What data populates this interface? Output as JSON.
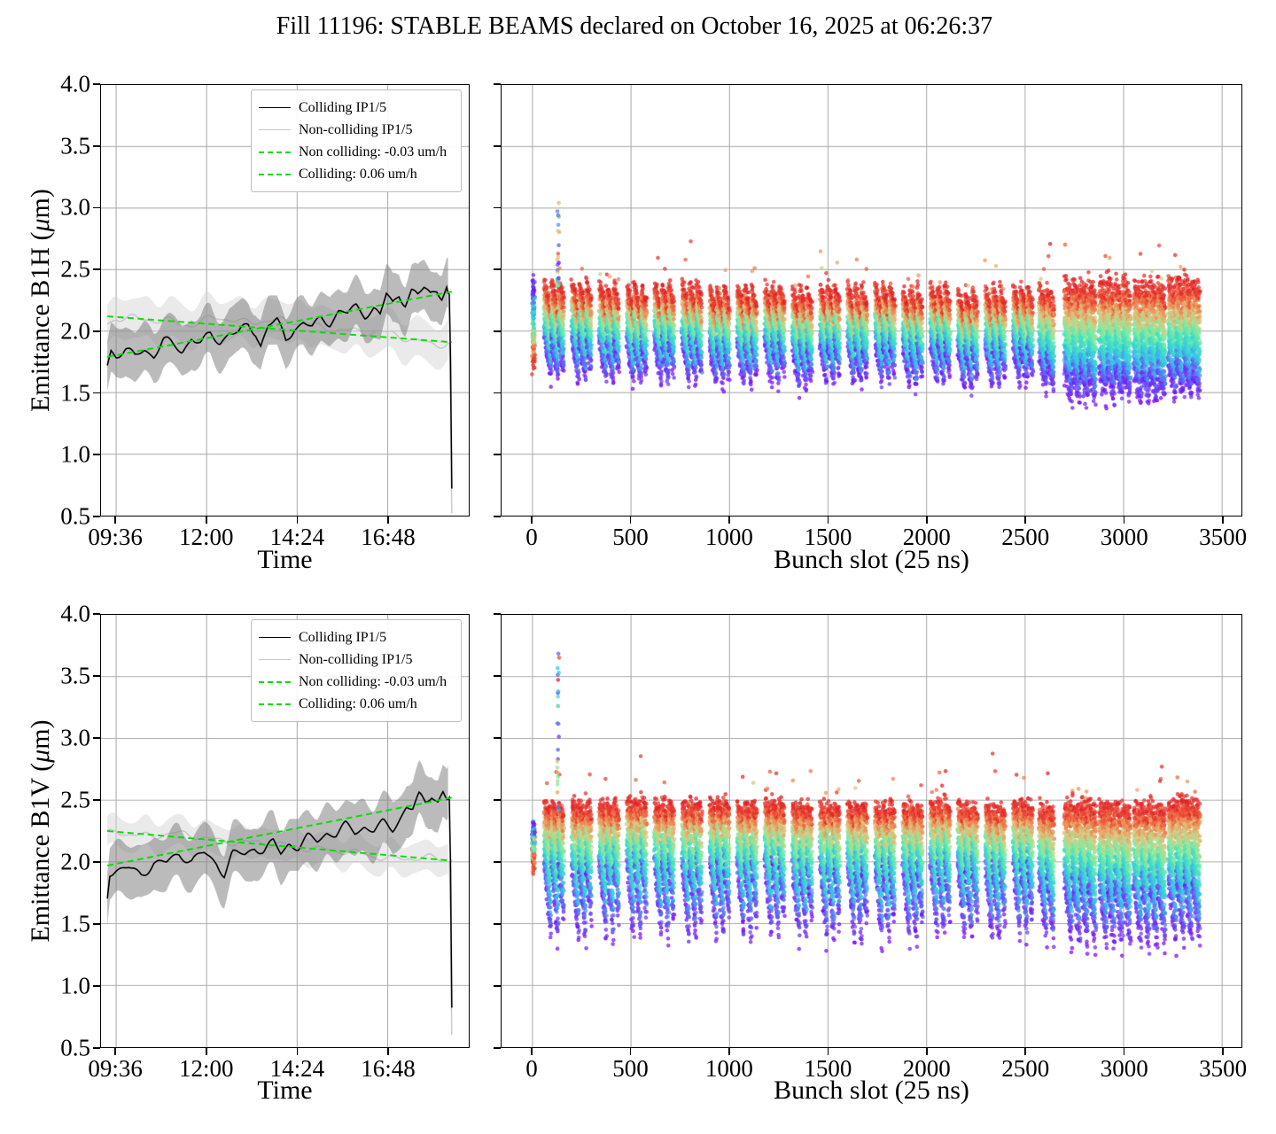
{
  "title": "Fill 11196: STABLE BEAMS declared on October 16, 2025 at 06:26:37",
  "colors": {
    "background": "#ffffff",
    "grid": "#b0b0b0",
    "spine": "#000000",
    "colliding_line": "#000000",
    "colliding_band": "rgba(125,125,125,0.52)",
    "non_colliding_line": "#c6c6c6",
    "non_colliding_band": "rgba(208,208,208,0.45)",
    "trend_green": "#00dd00"
  },
  "colormap_stops": [
    [
      0.0,
      "#8000ff"
    ],
    [
      0.15,
      "#5f5cf3"
    ],
    [
      0.3,
      "#35c2ea"
    ],
    [
      0.45,
      "#3fe0c0"
    ],
    [
      0.57,
      "#7deda0"
    ],
    [
      0.7,
      "#dcc87e"
    ],
    [
      0.82,
      "#f0854f"
    ],
    [
      0.92,
      "#ea4938"
    ],
    [
      1.0,
      "#e01e25"
    ]
  ],
  "chart_data": [
    {
      "id": "emittance-b1h-vs-time",
      "type": "line",
      "position": "top-left",
      "xlabel": "Time",
      "ylabel": "Emittance B1H (μm)",
      "ylabel_parts": {
        "pre": "Emittance B1H (",
        "mu": "μ",
        "post": "m)"
      },
      "xtick_labels": [
        "09:36",
        "12:00",
        "14:24",
        "16:48"
      ],
      "xtick_minutes": [
        0,
        144,
        288,
        432
      ],
      "ytick_labels": [
        "0.5",
        "1.0",
        "1.5",
        "2.0",
        "2.5",
        "3.0",
        "3.5",
        "4.0"
      ],
      "ytick_values": [
        0.5,
        1.0,
        1.5,
        2.0,
        2.5,
        3.0,
        3.5,
        4.0
      ],
      "xlim_minutes": [
        -24,
        561
      ],
      "ylim": [
        0.5,
        4.0
      ],
      "legend": [
        {
          "label": "Colliding IP1/5",
          "style": "solid-black"
        },
        {
          "label": "Non-colliding IP1/5",
          "style": "solid-gray"
        },
        {
          "label": "Non colliding: -0.03 um/h",
          "style": "dashed-green"
        },
        {
          "label": "Colliding: 0.06 um/h",
          "style": "dashed-green"
        }
      ],
      "colliding": {
        "band_halfwidth": 0.2,
        "wiggle": 0.042,
        "anchors": [
          [
            -14,
            1.7
          ],
          [
            -8,
            1.83
          ],
          [
            0,
            1.8
          ],
          [
            15,
            1.85
          ],
          [
            30,
            1.79
          ],
          [
            45,
            1.87
          ],
          [
            60,
            1.82
          ],
          [
            75,
            1.93
          ],
          [
            90,
            1.87
          ],
          [
            105,
            1.83
          ],
          [
            120,
            1.95
          ],
          [
            135,
            1.89
          ],
          [
            150,
            1.98
          ],
          [
            165,
            1.93
          ],
          [
            180,
            2.01
          ],
          [
            195,
            1.97
          ],
          [
            210,
            2.03
          ],
          [
            222,
            1.97
          ],
          [
            230,
            1.87
          ],
          [
            242,
            2.03
          ],
          [
            256,
            2.06
          ],
          [
            270,
            1.93
          ],
          [
            284,
            2.06
          ],
          [
            298,
            2.1
          ],
          [
            312,
            2.05
          ],
          [
            326,
            2.12
          ],
          [
            340,
            2.08
          ],
          [
            354,
            2.14
          ],
          [
            368,
            2.1
          ],
          [
            382,
            2.16
          ],
          [
            396,
            2.12
          ],
          [
            410,
            2.18
          ],
          [
            420,
            2.13
          ],
          [
            430,
            2.31
          ],
          [
            440,
            2.25
          ],
          [
            450,
            2.34
          ],
          [
            460,
            2.27
          ],
          [
            470,
            2.35
          ],
          [
            480,
            2.29
          ],
          [
            490,
            2.34
          ],
          [
            500,
            2.29
          ],
          [
            510,
            2.33
          ],
          [
            518,
            2.27
          ],
          [
            526,
            2.33
          ],
          [
            531,
            2.29
          ],
          [
            534,
            0.72
          ]
        ]
      },
      "non_colliding": {
        "band_halfwidth": 0.16,
        "wiggle": 0.03,
        "anchors": [
          [
            -14,
            2.06
          ],
          [
            0,
            2.1
          ],
          [
            40,
            2.07
          ],
          [
            80,
            2.1
          ],
          [
            120,
            2.07
          ],
          [
            160,
            2.1
          ],
          [
            200,
            2.06
          ],
          [
            240,
            2.1
          ],
          [
            280,
            2.08
          ],
          [
            320,
            2.03
          ],
          [
            360,
            2.02
          ],
          [
            400,
            1.99
          ],
          [
            440,
            1.96
          ],
          [
            480,
            1.93
          ],
          [
            520,
            1.91
          ],
          [
            531,
            1.9
          ],
          [
            534,
            0.52
          ]
        ]
      },
      "trends": {
        "colliding": {
          "x": [
            -14,
            534
          ],
          "y": [
            1.79,
            2.32
          ],
          "rate_label": "Colliding: 0.06 um/h"
        },
        "non_colliding": {
          "x": [
            -14,
            534
          ],
          "y": [
            2.12,
            1.91
          ],
          "rate_label": "Non colliding: -0.03 um/h"
        }
      },
      "seed": 3
    },
    {
      "id": "emittance-b1h-vs-bunch-slot",
      "type": "scatter",
      "position": "top-right",
      "xlabel": "Bunch slot (25 ns)",
      "xtick_labels": [
        "0",
        "500",
        "1000",
        "1500",
        "2000",
        "2500",
        "3000",
        "3500"
      ],
      "xtick_values": [
        0,
        500,
        1000,
        1500,
        2000,
        2500,
        3000,
        3500
      ],
      "ytick_values": [
        0.5,
        1.0,
        1.5,
        2.0,
        2.5,
        3.0,
        3.5,
        4.0
      ],
      "xlim": [
        -157,
        3598
      ],
      "ylim": [
        0.5,
        4.0
      ],
      "marker": {
        "radius": 2.3,
        "alpha": 0.72
      },
      "pilot_cluster": {
        "slot_range": [
          0,
          10
        ],
        "y_early": 2.38,
        "y_late": 1.72,
        "noise": 0.14
      },
      "train_sections": [
        {
          "trains": 18,
          "first_slot": 60,
          "pitch": 140,
          "width": 100,
          "bunch_step": 2,
          "subbatch": 36,
          "center": 2.03,
          "center_drift": -0.04,
          "spread": 0.52,
          "subbatch_slope": 0.2,
          "early_dive": 0.12
        },
        {
          "trains": 1,
          "first_slot": 2572,
          "pitch": 140,
          "width": 76,
          "bunch_step": 2,
          "subbatch": 38,
          "center": 1.99,
          "center_drift": 0,
          "spread": 0.62,
          "subbatch_slope": 0.15,
          "early_dive": 0.12
        },
        {
          "trains": 4,
          "first_slot": 2700,
          "pitch": 176,
          "width": 160,
          "bunch_step": 2,
          "subbatch": 40,
          "center": 1.97,
          "center_drift": 0,
          "spread": 0.78,
          "subbatch_slope": 0.12,
          "early_dive": 0.1
        }
      ],
      "spike": {
        "slot": 130,
        "y_range": [
          2.3,
          3.15
        ],
        "count": 26
      },
      "outliers": {
        "probability": 0.006,
        "extra": [
          0.15,
          0.4
        ]
      },
      "time_samples": 14,
      "seed": 7
    },
    {
      "id": "emittance-b1v-vs-time",
      "type": "line",
      "position": "bottom-left",
      "xlabel": "Time",
      "ylabel": "Emittance B1V (μm)",
      "ylabel_parts": {
        "pre": "Emittance B1V (",
        "mu": "μ",
        "post": "m)"
      },
      "xtick_labels": [
        "09:36",
        "12:00",
        "14:24",
        "16:48"
      ],
      "xtick_minutes": [
        0,
        144,
        288,
        432
      ],
      "ytick_labels": [
        "0.5",
        "1.0",
        "1.5",
        "2.0",
        "2.5",
        "3.0",
        "3.5",
        "4.0"
      ],
      "ytick_values": [
        0.5,
        1.0,
        1.5,
        2.0,
        2.5,
        3.0,
        3.5,
        4.0
      ],
      "xlim_minutes": [
        -24,
        561
      ],
      "ylim": [
        0.5,
        4.0
      ],
      "legend": [
        {
          "label": "Colliding IP1/5",
          "style": "solid-black"
        },
        {
          "label": "Non-colliding IP1/5",
          "style": "solid-gray"
        },
        {
          "label": "Non colliding: -0.03 um/h",
          "style": "dashed-green"
        },
        {
          "label": "Colliding: 0.06 um/h",
          "style": "dashed-green"
        }
      ],
      "colliding": {
        "band_halfwidth": 0.21,
        "wiggle": 0.04,
        "anchors": [
          [
            -14,
            1.72
          ],
          [
            -10,
            1.92
          ],
          [
            0,
            1.95
          ],
          [
            20,
            1.97
          ],
          [
            40,
            1.93
          ],
          [
            60,
            2.01
          ],
          [
            80,
            1.97
          ],
          [
            100,
            2.04
          ],
          [
            120,
            1.99
          ],
          [
            140,
            2.06
          ],
          [
            160,
            2.01
          ],
          [
            172,
            1.93
          ],
          [
            185,
            2.08
          ],
          [
            205,
            2.06
          ],
          [
            220,
            2.12
          ],
          [
            235,
            2.08
          ],
          [
            250,
            2.14
          ],
          [
            262,
            2.06
          ],
          [
            275,
            2.16
          ],
          [
            290,
            2.13
          ],
          [
            305,
            2.2
          ],
          [
            320,
            2.17
          ],
          [
            335,
            2.24
          ],
          [
            350,
            2.21
          ],
          [
            365,
            2.27
          ],
          [
            380,
            2.23
          ],
          [
            395,
            2.3
          ],
          [
            410,
            2.27
          ],
          [
            425,
            2.33
          ],
          [
            440,
            2.29
          ],
          [
            452,
            2.38
          ],
          [
            462,
            2.46
          ],
          [
            472,
            2.41
          ],
          [
            482,
            2.5
          ],
          [
            492,
            2.45
          ],
          [
            502,
            2.52
          ],
          [
            512,
            2.47
          ],
          [
            520,
            2.55
          ],
          [
            526,
            2.49
          ],
          [
            531,
            2.53
          ],
          [
            534,
            0.82
          ]
        ]
      },
      "non_colliding": {
        "band_halfwidth": 0.12,
        "wiggle": 0.028,
        "anchors": [
          [
            -14,
            2.22
          ],
          [
            0,
            2.26
          ],
          [
            60,
            2.22
          ],
          [
            120,
            2.2
          ],
          [
            180,
            2.18
          ],
          [
            240,
            2.14
          ],
          [
            300,
            2.12
          ],
          [
            360,
            2.08
          ],
          [
            420,
            2.05
          ],
          [
            480,
            2.02
          ],
          [
            531,
            2.0
          ],
          [
            534,
            0.6
          ]
        ]
      },
      "trends": {
        "colliding": {
          "x": [
            -14,
            534
          ],
          "y": [
            1.97,
            2.52
          ],
          "rate_label": "Colliding: 0.06 um/h"
        },
        "non_colliding": {
          "x": [
            -14,
            534
          ],
          "y": [
            2.25,
            2.01
          ],
          "rate_label": "Non colliding: -0.03 um/h"
        }
      },
      "seed": 11
    },
    {
      "id": "emittance-b1v-vs-bunch-slot",
      "type": "scatter",
      "position": "bottom-right",
      "xlabel": "Bunch slot (25 ns)",
      "xtick_labels": [
        "0",
        "500",
        "1000",
        "1500",
        "2000",
        "2500",
        "3000",
        "3500"
      ],
      "xtick_values": [
        0,
        500,
        1000,
        1500,
        2000,
        2500,
        3000,
        3500
      ],
      "ytick_values": [
        0.5,
        1.0,
        1.5,
        2.0,
        2.5,
        3.0,
        3.5,
        4.0
      ],
      "xlim": [
        -157,
        3598
      ],
      "ylim": [
        0.5,
        4.0
      ],
      "marker": {
        "radius": 2.3,
        "alpha": 0.72
      },
      "pilot_cluster": {
        "slot_range": [
          0,
          10
        ],
        "y_early": 2.28,
        "y_late": 1.98,
        "noise": 0.12
      },
      "train_sections": [
        {
          "trains": 18,
          "first_slot": 60,
          "pitch": 140,
          "width": 100,
          "bunch_step": 2,
          "subbatch": 36,
          "center": 2.17,
          "center_drift": -0.02,
          "spread": 0.55,
          "subbatch_slope": 0.1,
          "early_dive": 0.5
        },
        {
          "trains": 1,
          "first_slot": 2572,
          "pitch": 140,
          "width": 76,
          "bunch_step": 2,
          "subbatch": 38,
          "center": 2.12,
          "center_drift": 0,
          "spread": 0.6,
          "subbatch_slope": 0.08,
          "early_dive": 0.45
        },
        {
          "trains": 4,
          "first_slot": 2700,
          "pitch": 176,
          "width": 160,
          "bunch_step": 2,
          "subbatch": 40,
          "center": 2.1,
          "center_drift": 0,
          "spread": 0.68,
          "subbatch_slope": 0.06,
          "early_dive": 0.45
        }
      ],
      "spike": {
        "slot": 130,
        "y_range": [
          2.4,
          3.75
        ],
        "count": 26
      },
      "outliers": {
        "probability": 0.008,
        "extra": [
          0.12,
          0.38
        ]
      },
      "time_samples": 14,
      "seed": 13
    }
  ]
}
